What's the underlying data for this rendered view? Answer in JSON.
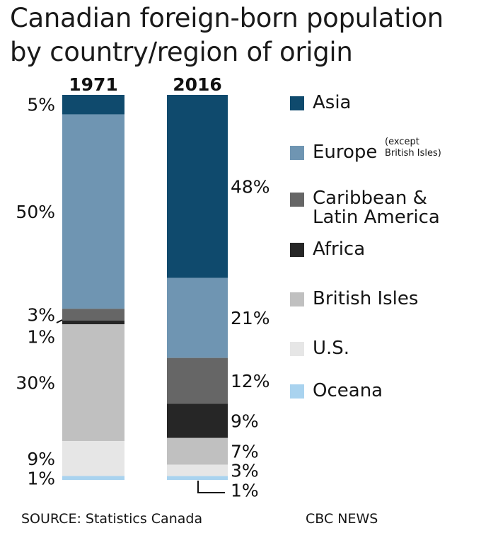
{
  "title_line1": "Canadian foreign-born population",
  "title_line2": "by country/region of origin",
  "legend": [
    {
      "label": "Asia",
      "color": "#0f4a6d"
    },
    {
      "label": "Europe",
      "note_line1": "(except",
      "note_line2": "British Isles)",
      "color": "#6f95b2"
    },
    {
      "label_line1": "Caribbean &",
      "label_line2": "Latin America",
      "color": "#666666"
    },
    {
      "label": "Africa",
      "color": "#262626"
    },
    {
      "label": "British Isles",
      "color": "#c0c0c0"
    },
    {
      "label": "U.S.",
      "color": "#e6e6e6"
    },
    {
      "label": "Oceana",
      "color": "#a9d3ef"
    }
  ],
  "footer": {
    "source": "SOURCE: Statistics Canada",
    "credit": "CBC NEWS"
  },
  "chart_data": {
    "type": "bar",
    "stacked": true,
    "unit": "%",
    "categories": [
      "1971",
      "2016"
    ],
    "series": [
      {
        "name": "Asia",
        "values": [
          5,
          48
        ],
        "labels": [
          "5%",
          "48%"
        ]
      },
      {
        "name": "Europe (except British Isles)",
        "values": [
          50,
          21
        ],
        "labels": [
          "50%",
          "21%"
        ]
      },
      {
        "name": "Caribbean & Latin America",
        "values": [
          3,
          12
        ],
        "labels": [
          "3%",
          "12%"
        ]
      },
      {
        "name": "Africa",
        "values": [
          1,
          9
        ],
        "labels": [
          "1%",
          "9%"
        ]
      },
      {
        "name": "British Isles",
        "values": [
          30,
          7
        ],
        "labels": [
          "30%",
          "7%"
        ]
      },
      {
        "name": "U.S.",
        "values": [
          9,
          3
        ],
        "labels": [
          "9%",
          "3%"
        ]
      },
      {
        "name": "Oceana",
        "values": [
          1,
          1
        ],
        "labels": [
          "1%",
          "1%"
        ]
      }
    ]
  }
}
